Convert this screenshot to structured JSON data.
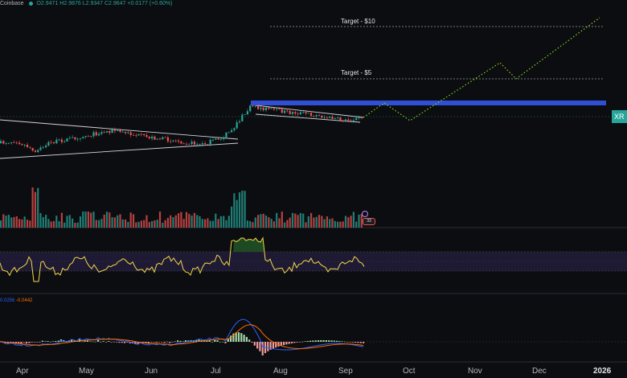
{
  "header": {
    "exchange": "Coinbase",
    "open": "O2.9471",
    "high": "H2.9876",
    "low": "L2.9347",
    "close": "C2.9647",
    "change": "+0.0177 (+0.60%)"
  },
  "annotations": {
    "target_10": "Target - $10",
    "target_5": "Target - $5"
  },
  "price_badge": "XR",
  "macd_header": {
    "macd": "0.0256",
    "signal": "-0.0442"
  },
  "volume_badge": "33",
  "x_axis": {
    "months": [
      "Apr",
      "May",
      "Jun",
      "Jul",
      "Aug",
      "Sep",
      "Oct",
      "Nov",
      "Dec",
      "2026"
    ]
  },
  "colors": {
    "background": "#0c0d10",
    "up": "#26a69a",
    "down": "#ef5350",
    "resistance": "#2f4fd6",
    "rsi": "#f5d84a",
    "rsi_band": "#1e1a33",
    "macd": "#2962ff",
    "signal": "#ff6d00",
    "projection": "#7ed321"
  },
  "chart_data": {
    "type": "candlestick",
    "price_levels": {
      "target_high": 10,
      "target_low": 5
    },
    "indicators": [
      "volume",
      "rsi",
      "macd"
    ],
    "grid": false
  }
}
